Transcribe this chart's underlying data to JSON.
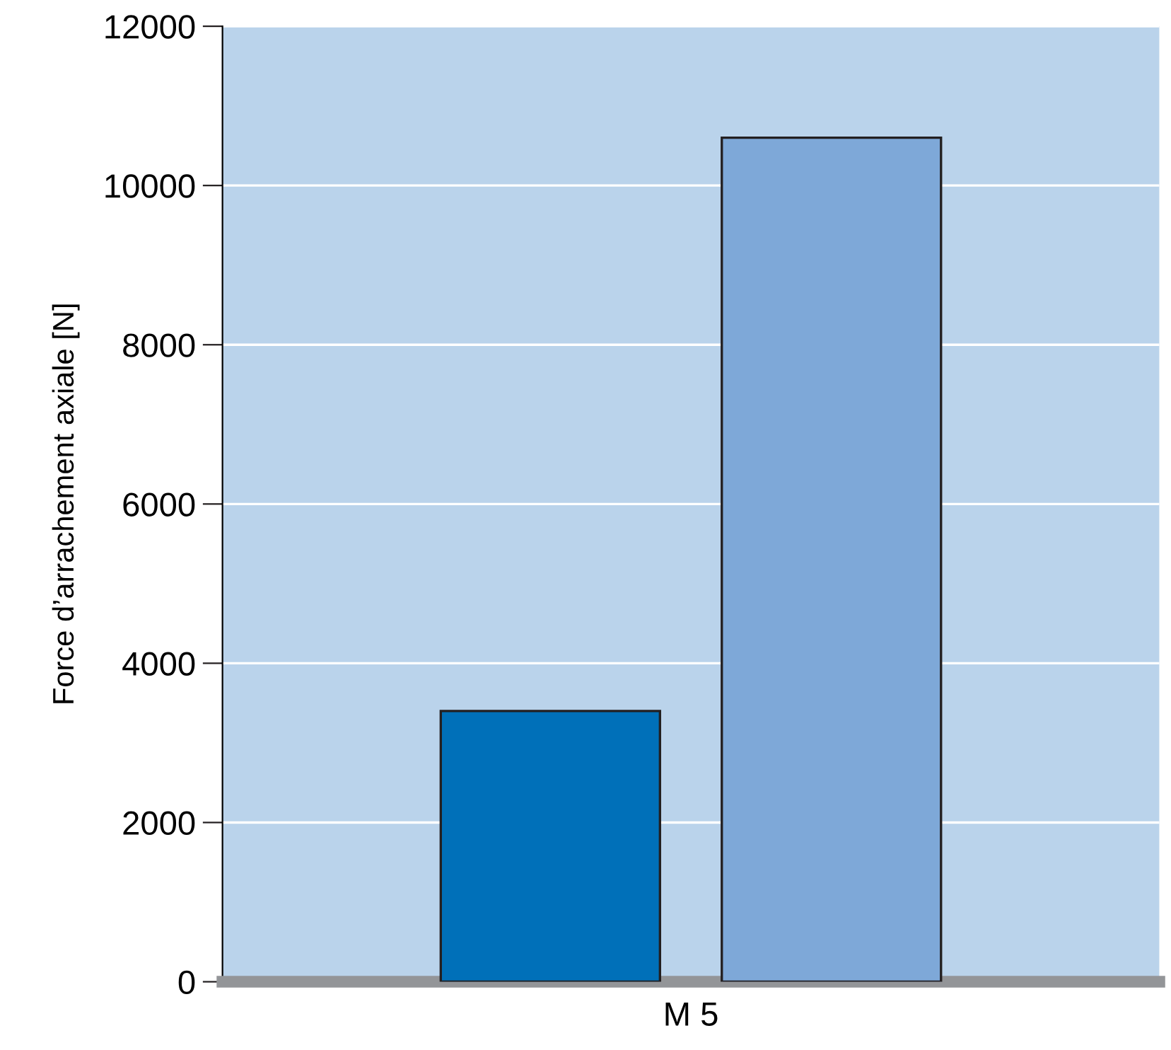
{
  "chart_data": {
    "type": "bar",
    "ylabel": "Force d’arrachement axiale [N]",
    "categories": [
      "M 5"
    ],
    "series": [
      {
        "color": "#0070b9",
        "values": [
          3400
        ]
      },
      {
        "color": "#7ea8d8",
        "values": [
          10600
        ]
      }
    ],
    "ylim": [
      0,
      12000
    ],
    "yticks": [
      0,
      2000,
      4000,
      6000,
      8000,
      10000,
      12000
    ],
    "grid": "y"
  }
}
